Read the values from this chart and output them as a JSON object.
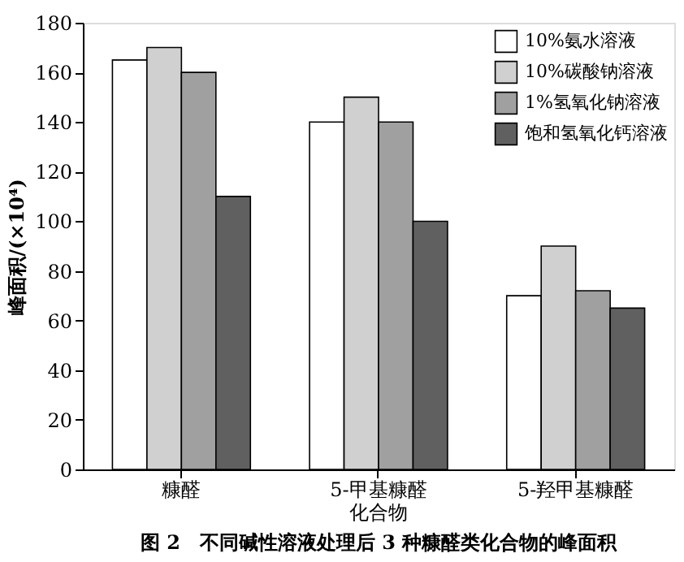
{
  "chart_data": {
    "type": "bar",
    "title": "图 2　不同碱性溶液处理后 3 种糠醛类化合物的峰面积",
    "ylabel": "峰面积/(×10⁴)",
    "categories": [
      "糠醛",
      "5-甲基糠醛化合物",
      "5-羟甲基糠醛"
    ],
    "series": [
      {
        "name": "10%氨水溶液",
        "color": "#ffffff",
        "values": [
          165,
          140,
          70
        ]
      },
      {
        "name": "10%碳酸钠溶液",
        "color": "#d0d0d0",
        "values": [
          170,
          150,
          90
        ]
      },
      {
        "name": "1%氢氧化钠溶液",
        "color": "#a0a0a0",
        "values": [
          160,
          140,
          72
        ]
      },
      {
        "name": "饱和氢氧化钙溶液",
        "color": "#606060",
        "values": [
          110,
          100,
          65
        ]
      }
    ],
    "ylim": [
      0,
      180
    ],
    "yticks": [
      0,
      20,
      40,
      60,
      80,
      100,
      120,
      140,
      160,
      180
    ],
    "grid": false,
    "legend": "top right"
  }
}
